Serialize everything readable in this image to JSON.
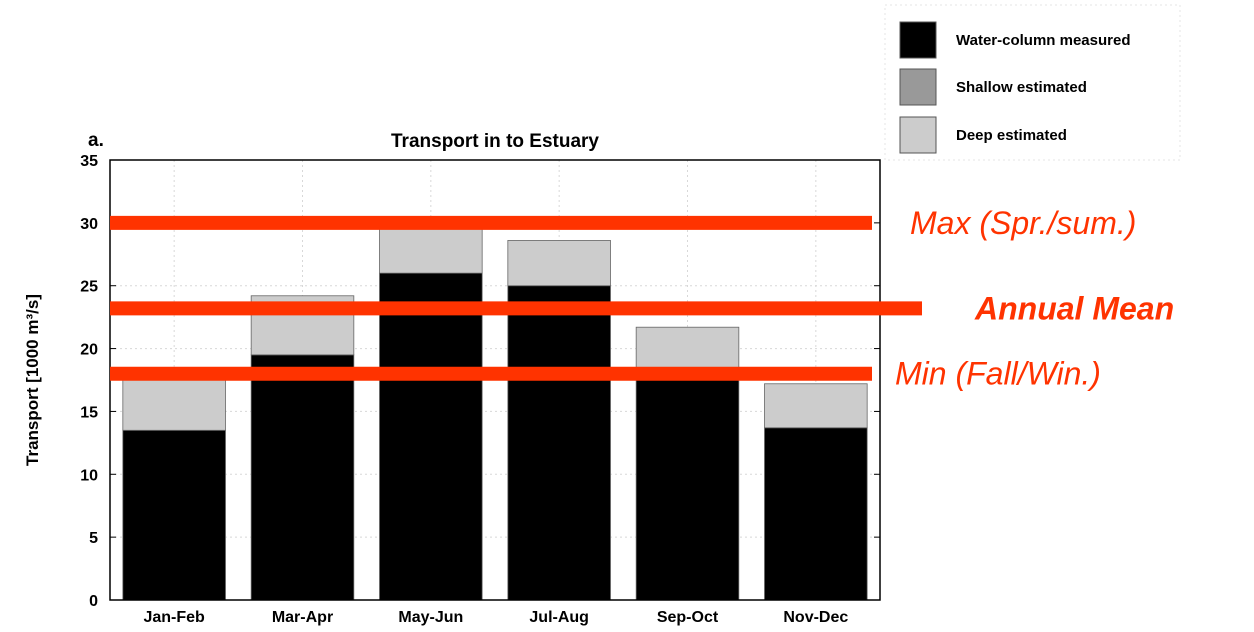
{
  "chart_data": {
    "type": "bar",
    "panel_label": "a.",
    "title": "Transport in to Estuary",
    "xlabel": "",
    "ylabel": "Transport [1000 m³/s]",
    "ylim": [
      0,
      35
    ],
    "yticks": [
      "0",
      "5",
      "10",
      "15",
      "20",
      "25",
      "30",
      "35"
    ],
    "categories": [
      "Jan-Feb",
      "Mar-Apr",
      "May-Jun",
      "Jul-Aug",
      "Sep-Oct",
      "Nov-Dec"
    ],
    "stacked": true,
    "grid": true,
    "legend_position": "top-right",
    "series": [
      {
        "name": "Water-column measured",
        "color": "#000000",
        "values": [
          13.5,
          19.5,
          26.0,
          25.0,
          17.5,
          13.7
        ]
      },
      {
        "name": "Shallow estimated",
        "color": "#999999",
        "values": [
          0,
          0,
          0,
          0,
          0,
          0
        ]
      },
      {
        "name": "Deep estimated",
        "color": "#cccccc",
        "values": [
          4.0,
          4.7,
          4.2,
          3.6,
          4.2,
          3.5
        ]
      }
    ],
    "reference_lines": [
      {
        "label": "Max (Spr./sum.)",
        "value": 30.0,
        "color": "#ff3300",
        "style": "italic"
      },
      {
        "label": "Annual Mean",
        "value": 23.2,
        "color": "#ff3300",
        "style": "bold-italic"
      },
      {
        "label": "Min (Fall/Win.)",
        "value": 18.0,
        "color": "#ff3300",
        "style": "italic"
      }
    ]
  }
}
